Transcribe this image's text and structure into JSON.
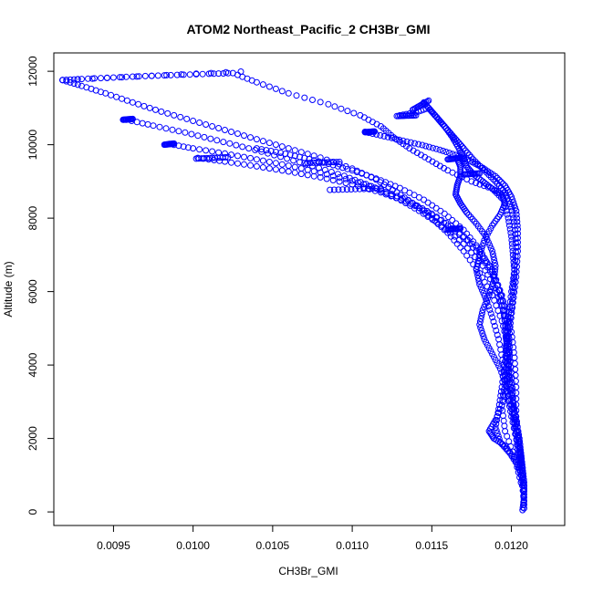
{
  "chart_data": {
    "type": "scatter",
    "title": "ATOM2 Northeast_Pacific_2 CH3Br_GMI",
    "xlabel": "CH3Br_GMI",
    "ylabel": "Altitude (m)",
    "xlim": [
      0.009125,
      0.012335
    ],
    "ylim": [
      -370,
      12500
    ],
    "xticks": [
      0.0095,
      0.01,
      0.0105,
      0.011,
      0.0115,
      0.012
    ],
    "xtick_labels": [
      "0.0095",
      "0.0100",
      "0.0105",
      "0.0110",
      "0.0115",
      "0.0120"
    ],
    "yticks": [
      0,
      2000,
      4000,
      6000,
      8000,
      10000,
      12000
    ],
    "ytick_labels": [
      "0",
      "2000",
      "4000",
      "6000",
      "8000",
      "10000",
      "12000"
    ],
    "marker": "open-circle",
    "color": "#0000ff",
    "grid": false,
    "series": [
      {
        "description_key": "profile-1",
        "points": [
          [
            0.01207,
            50
          ],
          [
            0.01208,
            400
          ],
          [
            0.01208,
            800
          ],
          [
            0.01207,
            1200
          ],
          [
            0.01206,
            1600
          ],
          [
            0.01205,
            2000
          ],
          [
            0.01203,
            2500
          ],
          [
            0.01201,
            3000
          ],
          [
            0.01199,
            3500
          ],
          [
            0.01198,
            4000
          ],
          [
            0.01197,
            4500
          ],
          [
            0.01198,
            5000
          ],
          [
            0.012,
            5500
          ],
          [
            0.01201,
            6000
          ],
          [
            0.01202,
            6500
          ],
          [
            0.01201,
            7000
          ],
          [
            0.012,
            7500
          ],
          [
            0.01198,
            8000
          ],
          [
            0.01195,
            8500
          ],
          [
            0.01188,
            8800
          ],
          [
            0.01175,
            9000
          ],
          [
            0.0116,
            9300
          ],
          [
            0.01148,
            9600
          ],
          [
            0.01136,
            9900
          ],
          [
            0.01126,
            10200
          ],
          [
            0.01118,
            10500
          ],
          [
            0.01105,
            10800
          ],
          [
            0.01085,
            11100
          ],
          [
            0.0106,
            11400
          ],
          [
            0.0104,
            11700
          ],
          [
            0.01025,
            11950
          ],
          [
            0.0101,
            11930
          ],
          [
            0.0099,
            11900
          ],
          [
            0.0097,
            11870
          ],
          [
            0.0095,
            11830
          ],
          [
            0.0093,
            11790
          ],
          [
            0.00918,
            11760
          ]
        ]
      },
      {
        "description_key": "profile-2",
        "points": [
          [
            0.00918,
            11760
          ],
          [
            0.0093,
            11600
          ],
          [
            0.00945,
            11400
          ],
          [
            0.00962,
            11150
          ],
          [
            0.0098,
            10900
          ],
          [
            0.01,
            10650
          ],
          [
            0.0102,
            10400
          ],
          [
            0.0104,
            10150
          ],
          [
            0.0106,
            9900
          ],
          [
            0.0108,
            9650
          ],
          [
            0.011,
            9350
          ],
          [
            0.01115,
            9050
          ],
          [
            0.01128,
            8700
          ],
          [
            0.0114,
            8350
          ],
          [
            0.0115,
            8000
          ],
          [
            0.0116,
            7600
          ],
          [
            0.0117,
            7100
          ],
          [
            0.0118,
            6500
          ],
          [
            0.01188,
            5900
          ],
          [
            0.01194,
            5200
          ],
          [
            0.01198,
            4500
          ],
          [
            0.012,
            3800
          ],
          [
            0.01201,
            3100
          ],
          [
            0.01202,
            2400
          ],
          [
            0.01204,
            1700
          ],
          [
            0.01206,
            1000
          ],
          [
            0.01208,
            300
          ]
        ]
      },
      {
        "description_key": "profile-3",
        "points": [
          [
            0.00958,
            10680
          ],
          [
            0.00975,
            10520
          ],
          [
            0.00995,
            10330
          ],
          [
            0.01015,
            10120
          ],
          [
            0.01035,
            9900
          ],
          [
            0.01055,
            9670
          ],
          [
            0.01075,
            9420
          ],
          [
            0.01095,
            9150
          ],
          [
            0.01112,
            8870
          ],
          [
            0.01128,
            8550
          ],
          [
            0.01142,
            8200
          ],
          [
            0.01156,
            7800
          ],
          [
            0.0117,
            7300
          ],
          [
            0.01182,
            6700
          ],
          [
            0.0119,
            6100
          ],
          [
            0.01195,
            5500
          ],
          [
            0.01197,
            4800
          ],
          [
            0.01196,
            4100
          ],
          [
            0.01194,
            3400
          ],
          [
            0.01192,
            2800
          ],
          [
            0.0119,
            2300
          ],
          [
            0.01193,
            1900
          ],
          [
            0.01199,
            1600
          ],
          [
            0.01205,
            1200
          ],
          [
            0.01208,
            700
          ]
        ]
      },
      {
        "description_key": "profile-4",
        "points": [
          [
            0.00985,
            10020
          ],
          [
            0.01,
            9900
          ],
          [
            0.0102,
            9760
          ],
          [
            0.0104,
            9600
          ],
          [
            0.0106,
            9430
          ],
          [
            0.0108,
            9240
          ],
          [
            0.011,
            9020
          ],
          [
            0.01118,
            8780
          ],
          [
            0.01135,
            8480
          ],
          [
            0.0115,
            8120
          ],
          [
            0.01165,
            7700
          ],
          [
            0.01178,
            7200
          ],
          [
            0.01188,
            6600
          ],
          [
            0.01194,
            5900
          ],
          [
            0.01197,
            5200
          ],
          [
            0.01199,
            4500
          ],
          [
            0.01198,
            3700
          ],
          [
            0.01195,
            3000
          ],
          [
            0.0119,
            2500
          ],
          [
            0.01186,
            2200
          ],
          [
            0.01189,
            2000
          ],
          [
            0.01196,
            1800
          ],
          [
            0.01203,
            1400
          ],
          [
            0.01207,
            900
          ]
        ]
      },
      {
        "description_key": "profile-5",
        "points": [
          [
            0.01003,
            9640
          ],
          [
            0.0102,
            9540
          ],
          [
            0.0104,
            9410
          ],
          [
            0.0106,
            9270
          ],
          [
            0.0108,
            9110
          ],
          [
            0.011,
            8920
          ],
          [
            0.01118,
            8700
          ],
          [
            0.01134,
            8450
          ],
          [
            0.01148,
            8150
          ],
          [
            0.0116,
            7800
          ],
          [
            0.01172,
            7400
          ],
          [
            0.01182,
            6900
          ],
          [
            0.0119,
            6300
          ],
          [
            0.01196,
            5600
          ],
          [
            0.012,
            4900
          ],
          [
            0.01202,
            4200
          ],
          [
            0.01203,
            3400
          ],
          [
            0.01203,
            2600
          ],
          [
            0.01205,
            1900
          ],
          [
            0.01207,
            1200
          ]
        ]
      },
      {
        "description_key": "profile-6",
        "points": [
          [
            0.0104,
            9900
          ],
          [
            0.01055,
            9780
          ],
          [
            0.0107,
            9640
          ],
          [
            0.01085,
            9480
          ],
          [
            0.011,
            9300
          ],
          [
            0.01115,
            9080
          ],
          [
            0.0113,
            8820
          ],
          [
            0.01145,
            8500
          ],
          [
            0.01158,
            8120
          ],
          [
            0.0117,
            7680
          ],
          [
            0.0118,
            7150
          ],
          [
            0.01188,
            6550
          ],
          [
            0.01193,
            5900
          ],
          [
            0.01196,
            5200
          ],
          [
            0.01197,
            4400
          ],
          [
            0.01196,
            3600
          ],
          [
            0.01194,
            2900
          ],
          [
            0.01196,
            2200
          ],
          [
            0.01202,
            1500
          ],
          [
            0.01206,
            800
          ]
        ]
      },
      {
        "description_key": "profile-7",
        "points": [
          [
            0.01108,
            10350
          ],
          [
            0.0112,
            10230
          ],
          [
            0.01132,
            10110
          ],
          [
            0.01144,
            9990
          ],
          [
            0.01155,
            9860
          ],
          [
            0.01165,
            9720
          ],
          [
            0.01174,
            9560
          ],
          [
            0.01182,
            9370
          ],
          [
            0.0119,
            9140
          ],
          [
            0.01196,
            8880
          ],
          [
            0.012,
            8580
          ],
          [
            0.01203,
            8200
          ],
          [
            0.01204,
            7700
          ],
          [
            0.01204,
            7100
          ],
          [
            0.01203,
            6400
          ],
          [
            0.01201,
            5700
          ],
          [
            0.01199,
            5000
          ],
          [
            0.01198,
            4300
          ],
          [
            0.01199,
            3500
          ],
          [
            0.01202,
            2700
          ],
          [
            0.01205,
            1900
          ],
          [
            0.01207,
            1100
          ],
          [
            0.01208,
            200
          ]
        ]
      },
      {
        "description_key": "profile-8",
        "points": [
          [
            0.01145,
            11150
          ],
          [
            0.0115,
            10900
          ],
          [
            0.01155,
            10650
          ],
          [
            0.0116,
            10400
          ],
          [
            0.01165,
            10150
          ],
          [
            0.0117,
            9900
          ],
          [
            0.01176,
            9600
          ],
          [
            0.01183,
            9300
          ],
          [
            0.0119,
            9000
          ],
          [
            0.01196,
            8700
          ],
          [
            0.012,
            8300
          ],
          [
            0.01202,
            7800
          ],
          [
            0.01203,
            7200
          ],
          [
            0.01202,
            6600
          ],
          [
            0.012,
            6000
          ],
          [
            0.01198,
            5300
          ],
          [
            0.01197,
            4600
          ],
          [
            0.01197,
            3900
          ],
          [
            0.01199,
            3200
          ],
          [
            0.01202,
            2500
          ],
          [
            0.01205,
            1700
          ],
          [
            0.01207,
            900
          ],
          [
            0.01208,
            100
          ]
        ]
      },
      {
        "description_key": "profile-9",
        "points": [
          [
            0.0113,
            10800
          ],
          [
            0.0114,
            10880
          ],
          [
            0.01148,
            11000
          ],
          [
            0.01152,
            10800
          ],
          [
            0.01158,
            10500
          ],
          [
            0.01163,
            10200
          ],
          [
            0.01167,
            9900
          ],
          [
            0.0117,
            9650
          ],
          [
            0.01172,
            9400
          ],
          [
            0.01176,
            9200
          ],
          [
            0.01182,
            9000
          ],
          [
            0.01188,
            8800
          ],
          [
            0.01194,
            8650
          ],
          [
            0.01196,
            8400
          ],
          [
            0.01193,
            8100
          ],
          [
            0.01188,
            7800
          ],
          [
            0.01183,
            7400
          ],
          [
            0.0118,
            7000
          ],
          [
            0.01178,
            6600
          ],
          [
            0.0118,
            6200
          ],
          [
            0.01184,
            5800
          ],
          [
            0.01188,
            5300
          ],
          [
            0.01192,
            4700
          ],
          [
            0.01195,
            4000
          ],
          [
            0.01197,
            3300
          ],
          [
            0.012,
            2600
          ],
          [
            0.01204,
            1800
          ],
          [
            0.01207,
            1000
          ]
        ]
      },
      {
        "description_key": "profile-10",
        "points": [
          [
            0.01166,
            9620
          ],
          [
            0.01168,
            9400
          ],
          [
            0.01168,
            9150
          ],
          [
            0.01166,
            8900
          ],
          [
            0.01165,
            8650
          ],
          [
            0.01168,
            8400
          ],
          [
            0.01172,
            8150
          ],
          [
            0.01178,
            7850
          ],
          [
            0.01184,
            7500
          ],
          [
            0.01188,
            7100
          ],
          [
            0.0119,
            6700
          ],
          [
            0.01189,
            6300
          ],
          [
            0.01186,
            5900
          ],
          [
            0.01182,
            5500
          ],
          [
            0.0118,
            5100
          ],
          [
            0.01183,
            4700
          ],
          [
            0.01188,
            4300
          ],
          [
            0.01193,
            3900
          ],
          [
            0.01197,
            3400
          ],
          [
            0.012,
            2800
          ],
          [
            0.01203,
            2200
          ],
          [
            0.01206,
            1500
          ],
          [
            0.01208,
            600
          ]
        ]
      }
    ],
    "clusters": [
      {
        "x_from": 0.00918,
        "x_to": 0.0103,
        "y_from": 11760,
        "y_to": 11990
      },
      {
        "x_from": 0.00956,
        "x_to": 0.00962,
        "y_from": 10680,
        "y_to": 10700
      },
      {
        "x_from": 0.00982,
        "x_to": 0.00988,
        "y_from": 10000,
        "y_to": 10030
      },
      {
        "x_from": 0.01002,
        "x_to": 0.01022,
        "y_from": 9620,
        "y_to": 9660
      },
      {
        "x_from": 0.0107,
        "x_to": 0.01092,
        "y_from": 9500,
        "y_to": 9530
      },
      {
        "x_from": 0.01086,
        "x_to": 0.01118,
        "y_from": 8770,
        "y_to": 8810
      },
      {
        "x_from": 0.01108,
        "x_to": 0.01114,
        "y_from": 10340,
        "y_to": 10360
      },
      {
        "x_from": 0.01128,
        "x_to": 0.0114,
        "y_from": 10780,
        "y_to": 10800
      },
      {
        "x_from": 0.01138,
        "x_to": 0.01148,
        "y_from": 10950,
        "y_to": 11200
      },
      {
        "x_from": 0.0116,
        "x_to": 0.01168,
        "y_from": 9600,
        "y_to": 9640
      },
      {
        "x_from": 0.0117,
        "x_to": 0.0118,
        "y_from": 9190,
        "y_to": 9220
      },
      {
        "x_from": 0.0116,
        "x_to": 0.01168,
        "y_from": 7680,
        "y_to": 7720
      }
    ]
  }
}
